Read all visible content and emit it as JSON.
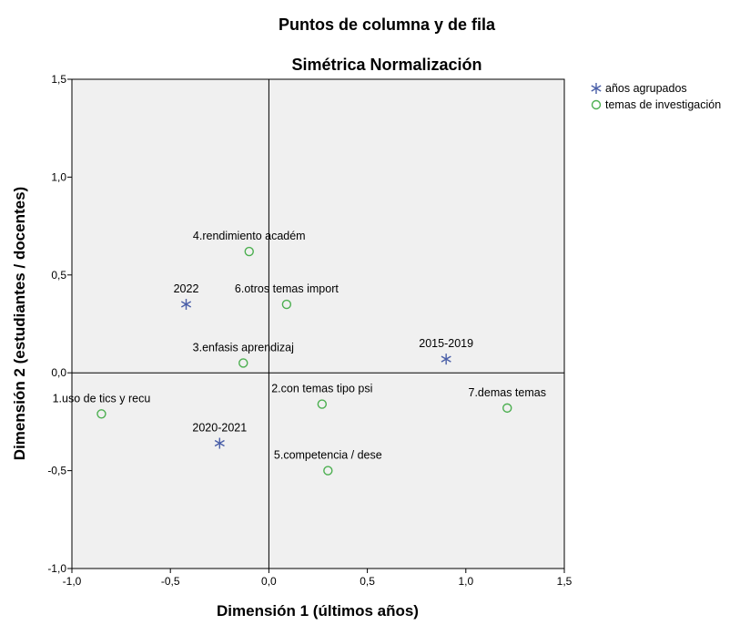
{
  "chart_data": {
    "type": "scatter",
    "title": "Puntos de columna y de fila",
    "subtitle": "Simétrica Normalización",
    "xlabel": "Dimensión 1 (últimos años)",
    "ylabel": "Dimensión 2 (estudiantes / docentes)",
    "xlim": [
      -1.0,
      1.5
    ],
    "ylim": [
      -1.0,
      1.5
    ],
    "xticks": [
      -1.0,
      -0.5,
      0.0,
      0.5,
      1.0,
      1.5
    ],
    "yticks": [
      -1.0,
      -0.5,
      0.0,
      0.5,
      1.0,
      1.5
    ],
    "xtick_labels": [
      "-1,0",
      "-0,5",
      "0,0",
      "0,5",
      "1,0",
      "1,5"
    ],
    "ytick_labels": [
      "-1,0",
      "-0,5",
      "0,0",
      "0,5",
      "1,0",
      "1,5"
    ],
    "reference_lines": {
      "x": 0,
      "y": 0
    },
    "legend_position": "top-right",
    "series": [
      {
        "name": "años agrupados",
        "marker": "star",
        "color": "#4a5fa8",
        "points": [
          {
            "label": "2022",
            "x": -0.42,
            "y": 0.35
          },
          {
            "label": "2020-2021",
            "x": -0.25,
            "y": -0.36
          },
          {
            "label": "2015-2019",
            "x": 0.9,
            "y": 0.07
          }
        ]
      },
      {
        "name": "temas de investigación",
        "marker": "circle",
        "color": "#4caf50",
        "points": [
          {
            "label": "4.rendimiento académ",
            "x": -0.1,
            "y": 0.62
          },
          {
            "label": "6.otros temas import",
            "x": 0.09,
            "y": 0.35
          },
          {
            "label": "3.enfasis aprendizaj",
            "x": -0.13,
            "y": 0.05
          },
          {
            "label": "1.uso de tics y recu",
            "x": -0.85,
            "y": -0.21
          },
          {
            "label": "2.con temas tipo psi",
            "x": 0.27,
            "y": -0.16
          },
          {
            "label": "7.demas temas",
            "x": 1.21,
            "y": -0.18
          },
          {
            "label": "5.competencia / dese",
            "x": 0.3,
            "y": -0.5
          }
        ]
      }
    ]
  }
}
